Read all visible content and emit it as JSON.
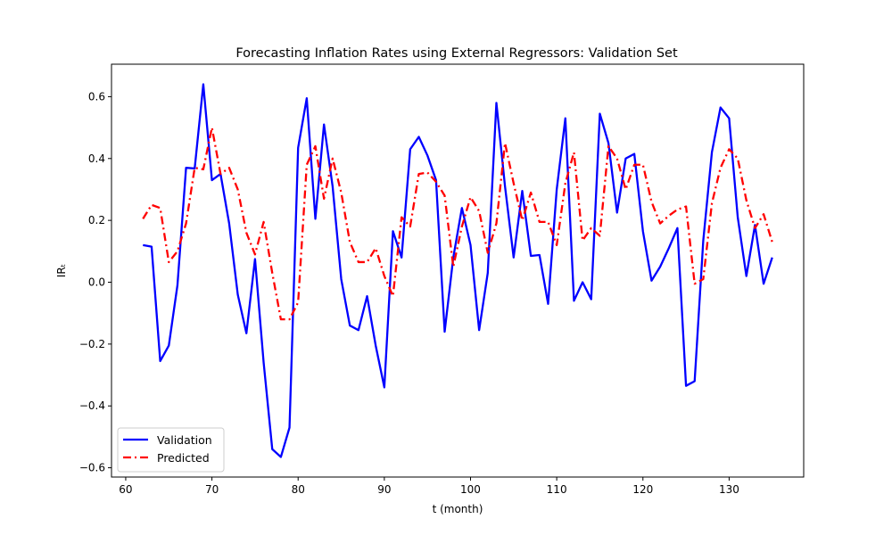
{
  "chart_data": {
    "type": "line",
    "title": "Forecasting Inflation Rates using External Regressors: Validation Set",
    "xlabel": "t (month)",
    "ylabel": "IRₜ",
    "xlim": [
      58.35,
      138.65
    ],
    "ylim": [
      -0.63,
      0.705
    ],
    "xticks": [
      60,
      70,
      80,
      90,
      100,
      110,
      120,
      130
    ],
    "yticks": [
      -0.6,
      -0.4,
      -0.2,
      0.0,
      0.2,
      0.4,
      0.6
    ],
    "ytick_labels": [
      "−0.6",
      "−0.4",
      "−0.2",
      "0.0",
      "0.2",
      "0.4",
      "0.6"
    ],
    "grid": false,
    "legend_position": "lower-left",
    "x": [
      62,
      63,
      64,
      65,
      66,
      67,
      68,
      69,
      70,
      71,
      72,
      73,
      74,
      75,
      76,
      77,
      78,
      79,
      80,
      81,
      82,
      83,
      84,
      85,
      86,
      87,
      88,
      89,
      90,
      91,
      92,
      93,
      94,
      95,
      96,
      97,
      98,
      99,
      100,
      101,
      102,
      103,
      104,
      105,
      106,
      107,
      108,
      109,
      110,
      111,
      112,
      113,
      114,
      115,
      116,
      117,
      118,
      119,
      120,
      121,
      122,
      123,
      124,
      125,
      126,
      127,
      128,
      129,
      130,
      131,
      132,
      133,
      134,
      135
    ],
    "series": [
      {
        "name": "Validation",
        "color": "#0000ff",
        "style": "solid",
        "values": [
          0.12,
          0.115,
          -0.255,
          -0.205,
          -0.01,
          0.37,
          0.368,
          0.64,
          0.33,
          0.35,
          0.19,
          -0.04,
          -0.165,
          0.075,
          -0.26,
          -0.54,
          -0.565,
          -0.47,
          0.435,
          0.595,
          0.205,
          0.51,
          0.31,
          0.01,
          -0.14,
          -0.155,
          -0.045,
          -0.205,
          -0.34,
          0.165,
          0.08,
          0.43,
          0.47,
          0.41,
          0.33,
          -0.16,
          0.08,
          0.24,
          0.12,
          -0.155,
          0.03,
          0.58,
          0.31,
          0.08,
          0.295,
          0.085,
          0.088,
          -0.07,
          0.3,
          0.53,
          -0.06,
          0.0,
          -0.055,
          0.545,
          0.45,
          0.225,
          0.4,
          0.415,
          0.165,
          0.005,
          0.05,
          0.11,
          0.175,
          -0.335,
          -0.32,
          0.135,
          0.42,
          0.565,
          0.53,
          0.21,
          0.02,
          0.185,
          -0.005,
          0.08
        ]
      },
      {
        "name": "Predicted",
        "color": "#ff0000",
        "style": "dashdot",
        "values": [
          0.205,
          0.25,
          0.24,
          0.065,
          0.1,
          0.19,
          0.37,
          0.365,
          0.5,
          0.35,
          0.37,
          0.3,
          0.16,
          0.09,
          0.195,
          0.03,
          -0.12,
          -0.12,
          -0.065,
          0.38,
          0.44,
          0.27,
          0.4,
          0.29,
          0.13,
          0.065,
          0.065,
          0.11,
          0.02,
          -0.045,
          0.21,
          0.18,
          0.35,
          0.355,
          0.325,
          0.28,
          0.05,
          0.18,
          0.275,
          0.23,
          0.095,
          0.19,
          0.45,
          0.32,
          0.2,
          0.29,
          0.195,
          0.195,
          0.12,
          0.32,
          0.42,
          0.135,
          0.175,
          0.15,
          0.44,
          0.4,
          0.3,
          0.38,
          0.38,
          0.26,
          0.19,
          0.215,
          0.235,
          0.245,
          -0.005,
          0.01,
          0.255,
          0.37,
          0.43,
          0.4,
          0.265,
          0.175,
          0.22,
          0.13
        ]
      }
    ]
  }
}
